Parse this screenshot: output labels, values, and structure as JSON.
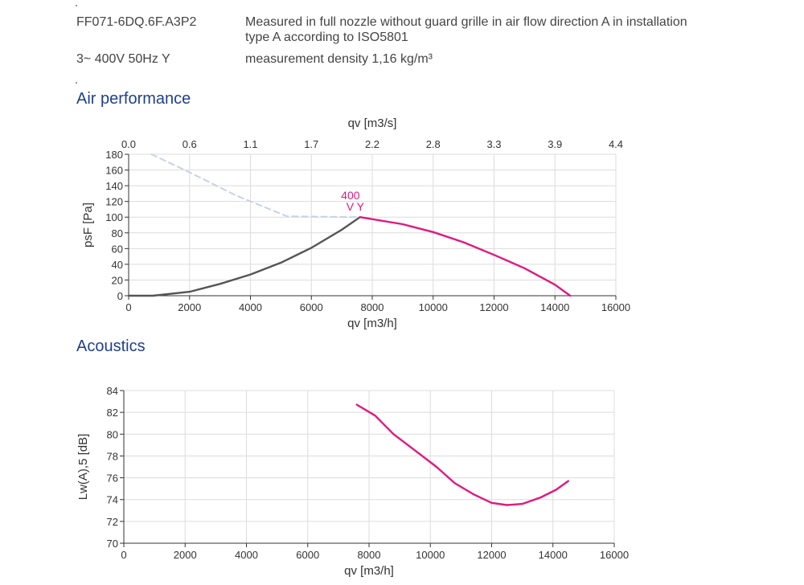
{
  "header": {
    "model": "FF071-6DQ.6F.A3P2",
    "supply": "3~ 400V 50Hz Y",
    "desc_line1": "Measured in full nozzle without guard grille in air flow direction A in installation",
    "desc_line2": "type A according to ISO5801",
    "density": "measurement density 1,16 kg/m³"
  },
  "sections": {
    "air": "Air performance",
    "acoustics": "Acoustics"
  },
  "colors": {
    "accent": "#e0197e",
    "curve_grey": "#555555",
    "dashed": "#c7d3e3",
    "section_title": "#1f3f8f"
  },
  "chart_data": [
    {
      "type": "line",
      "xlabel": "qv [m3/h]",
      "ylabel": "psF [Pa]",
      "x2label": "qv [m3/s]",
      "xlim": [
        0,
        16000
      ],
      "ylim": [
        0,
        180
      ],
      "xticks": [
        "0",
        "2000",
        "4000",
        "6000",
        "8000",
        "10000",
        "12000",
        "14000",
        "16000"
      ],
      "yticks": [
        "0",
        "20",
        "40",
        "60",
        "80",
        "100",
        "120",
        "140",
        "160",
        "180"
      ],
      "x2ticks": [
        "0.0",
        "0.6",
        "1.1",
        "1.7",
        "2.2",
        "2.8",
        "3.3",
        "3.9",
        "4.4"
      ],
      "grid": true,
      "annotation": [
        "400",
        "V Y"
      ],
      "series": [
        {
          "style": "dashed",
          "color": "#c7d3e3",
          "x": [
            750,
            2000,
            3500,
            5200,
            7600
          ],
          "y": [
            180,
            157,
            128,
            101,
            100
          ]
        },
        {
          "style": "solid",
          "color": "#555555",
          "x": [
            0,
            800,
            2000,
            3000,
            4000,
            5000,
            6000,
            7000,
            7600
          ],
          "y": [
            0,
            0,
            5,
            15,
            27,
            42,
            61,
            84,
            100
          ]
        },
        {
          "style": "solid",
          "color": "#e0197e",
          "x": [
            7600,
            9000,
            10000,
            11000,
            12000,
            13000,
            14000,
            14500
          ],
          "y": [
            100,
            91,
            81,
            68,
            52,
            35,
            14,
            0
          ]
        }
      ]
    },
    {
      "type": "line",
      "xlabel": "qv [m3/h]",
      "ylabel": "Lw(A),5 [dB]",
      "xlim": [
        0,
        16000
      ],
      "ylim": [
        70,
        84
      ],
      "xticks": [
        "0",
        "2000",
        "4000",
        "6000",
        "8000",
        "10000",
        "12000",
        "14000",
        "16000"
      ],
      "yticks": [
        "70",
        "72",
        "74",
        "76",
        "78",
        "80",
        "82",
        "84"
      ],
      "grid": true,
      "series": [
        {
          "style": "solid",
          "color": "#e0197e",
          "x": [
            7600,
            8200,
            8800,
            9500,
            10200,
            10800,
            11400,
            12000,
            12500,
            13000,
            13600,
            14100,
            14500
          ],
          "y": [
            82.7,
            81.7,
            80.0,
            78.5,
            77.0,
            75.5,
            74.5,
            73.7,
            73.5,
            73.6,
            74.2,
            74.9,
            75.7
          ]
        }
      ]
    }
  ]
}
